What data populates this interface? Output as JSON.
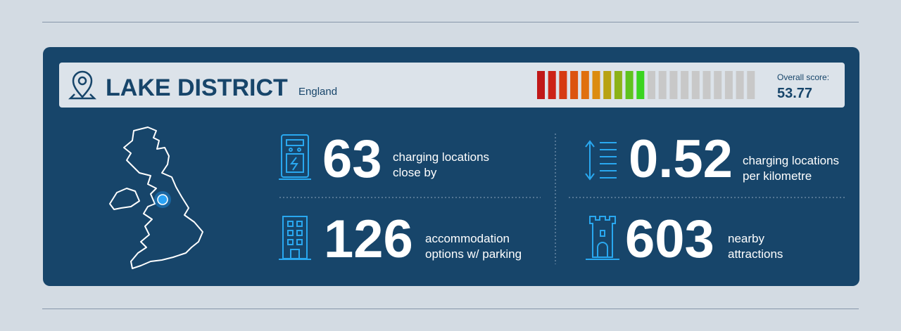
{
  "header": {
    "title": "LAKE DISTRICT",
    "region": "England"
  },
  "score": {
    "label": "Overall score:",
    "value": 53.77
  },
  "stats": [
    {
      "number": "63",
      "label": [
        "charging locations",
        "close by"
      ]
    },
    {
      "number": "0.52",
      "label": [
        "charging locations",
        "per kilometre"
      ]
    },
    {
      "number": "126",
      "label": [
        "accommodation",
        "options w/ parking"
      ]
    },
    {
      "number": "603",
      "label": [
        "nearby",
        "attractions"
      ]
    }
  ]
}
